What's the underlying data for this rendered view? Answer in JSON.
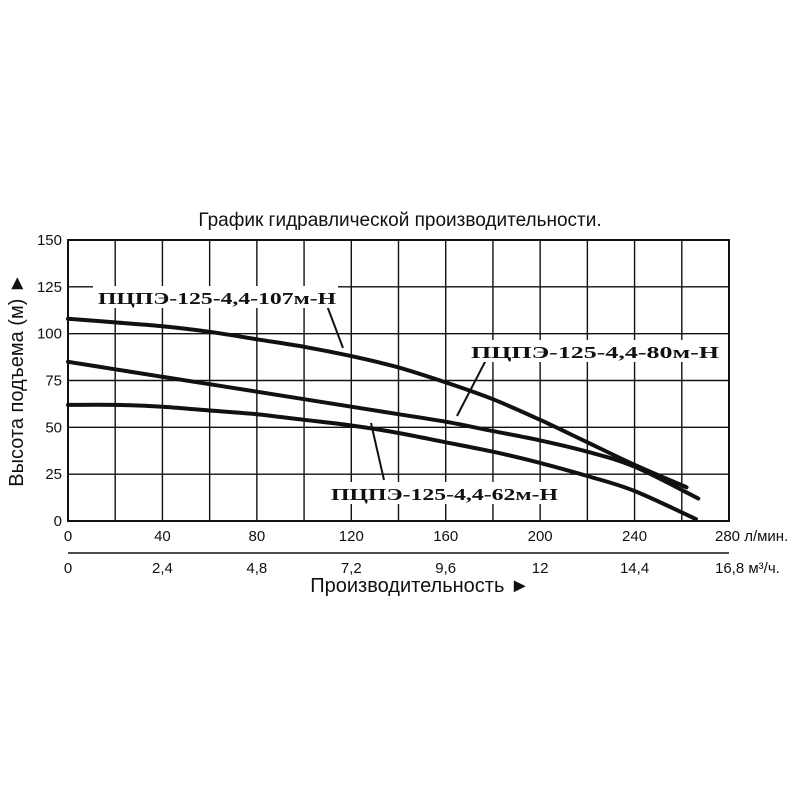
{
  "chart_data": {
    "type": "line",
    "title": "График гидравлической производительности.",
    "ylabel": "Высота подъема (м) ►",
    "xlabel": "Производительность ►",
    "ylim": [
      0,
      150
    ],
    "y_ticks": [
      "0",
      "25",
      "50",
      "75",
      "100",
      "125",
      "150"
    ],
    "xlim": [
      0,
      280
    ],
    "x_ticks_lmin": [
      "0",
      "40",
      "80",
      "120",
      "160",
      "200",
      "240",
      "280 л/мин."
    ],
    "x_ticks_m3h": [
      "0",
      "2,4",
      "4,8",
      "7,2",
      "9,6",
      "12",
      "14,4",
      "16,8 м³/ч."
    ],
    "grid": true,
    "series": [
      {
        "name": "ПЦПЭ-125-4,4-107м-Н",
        "x": [
          0,
          20,
          40,
          60,
          80,
          100,
          120,
          140,
          160,
          180,
          200,
          220,
          240,
          262
        ],
        "y": [
          108,
          106,
          104,
          101,
          97,
          93,
          88,
          82,
          74,
          65,
          54,
          42,
          30,
          18
        ]
      },
      {
        "name": "ПЦПЭ-125-4,4-80м-Н",
        "x": [
          0,
          20,
          40,
          60,
          80,
          100,
          120,
          140,
          160,
          180,
          200,
          220,
          240,
          267
        ],
        "y": [
          85,
          81,
          77,
          73,
          69,
          65,
          61,
          57,
          53,
          48,
          43,
          37,
          29,
          12
        ]
      },
      {
        "name": "ПЦПЭ-125-4,4-62м-Н",
        "x": [
          0,
          20,
          40,
          60,
          80,
          100,
          120,
          140,
          160,
          180,
          200,
          220,
          240,
          266
        ],
        "y": [
          62,
          62,
          61,
          59,
          57,
          54,
          51,
          47,
          42,
          37,
          31,
          24,
          16,
          1
        ]
      }
    ]
  }
}
